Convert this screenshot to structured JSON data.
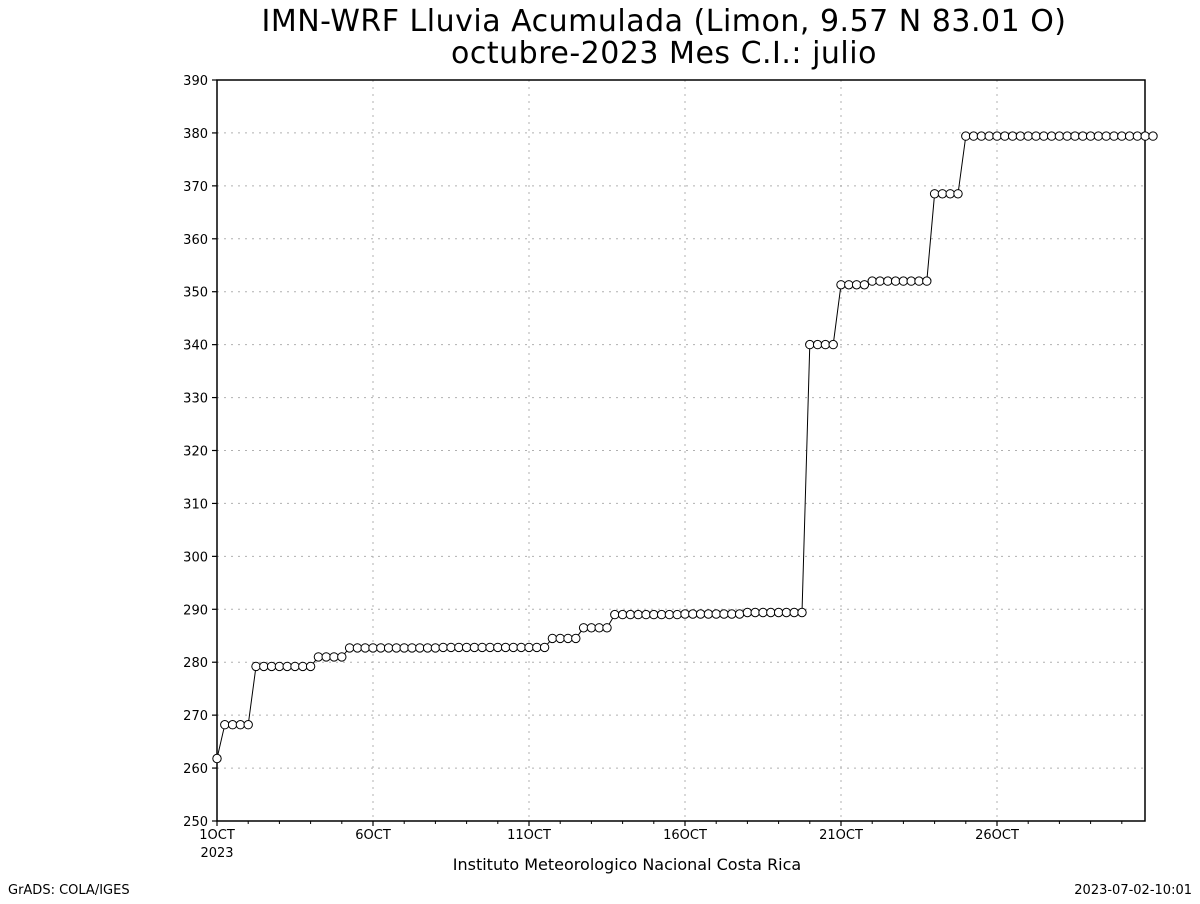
{
  "chart_data": {
    "type": "line",
    "title": "IMN-WRF  Lluvia Acumulada  (Limon, 9.57  N 83.01  O)",
    "subtitle": "octubre-2023 Mes C.I.: julio",
    "ylim": [
      250,
      390
    ],
    "ylabel": "",
    "xlabel": "Instituto Meteorologico Nacional Costa Rica",
    "y_ticks": [
      250,
      260,
      270,
      280,
      290,
      300,
      310,
      320,
      330,
      340,
      350,
      360,
      370,
      380,
      390
    ],
    "x_ticks": [
      "1OCT",
      "6OCT",
      "11OCT",
      "16OCT",
      "21OCT",
      "26OCT"
    ],
    "x_tick_sublabel": "2023",
    "grid": true,
    "markers": "open-circle",
    "x_step_label": "6-hourly steps from 1OCT2023",
    "series": [
      {
        "values": [
          261.8,
          268.2,
          268.2,
          268.2,
          268.2,
          279.2,
          279.2,
          279.2,
          279.2,
          279.2,
          279.2,
          279.2,
          279.2,
          281.0,
          281.0,
          281.0,
          281.0,
          282.7,
          282.7,
          282.7,
          282.7,
          282.7,
          282.7,
          282.7,
          282.7,
          282.7,
          282.7,
          282.7,
          282.7,
          282.8,
          282.8,
          282.8,
          282.8,
          282.8,
          282.8,
          282.8,
          282.8,
          282.8,
          282.8,
          282.8,
          282.8,
          282.8,
          282.8,
          284.5,
          284.5,
          284.5,
          284.5,
          286.5,
          286.5,
          286.5,
          286.5,
          289.0,
          289.0,
          289.0,
          289.0,
          289.0,
          289.0,
          289.0,
          289.0,
          289.0,
          289.1,
          289.1,
          289.1,
          289.1,
          289.1,
          289.1,
          289.1,
          289.1,
          289.4,
          289.4,
          289.4,
          289.4,
          289.4,
          289.4,
          289.4,
          289.4,
          340.0,
          340.0,
          340.0,
          340.0,
          351.3,
          351.3,
          351.3,
          351.3,
          352.0,
          352.0,
          352.0,
          352.0,
          352.0,
          352.0,
          352.0,
          352.0,
          368.5,
          368.5,
          368.5,
          368.5,
          379.4,
          379.4,
          379.4,
          379.4,
          379.4,
          379.4,
          379.4,
          379.4,
          379.4,
          379.4,
          379.4,
          379.4,
          379.4,
          379.4,
          379.4,
          379.4,
          379.4,
          379.4,
          379.4,
          379.4,
          379.4,
          379.4,
          379.4,
          379.4,
          379.4
        ]
      }
    ]
  },
  "footer": {
    "left": "GrADS: COLA/IGES",
    "right": "2023-07-02-10:01"
  }
}
